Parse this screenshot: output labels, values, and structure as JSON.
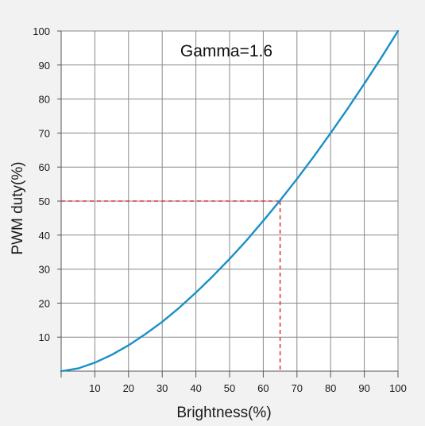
{
  "chart_data": {
    "type": "line",
    "title": "",
    "annotation": "Gamma=1.6",
    "xlabel": "Brightness(%)",
    "ylabel": "PWM duty(%)",
    "xlim": [
      0,
      100
    ],
    "ylim": [
      0,
      100
    ],
    "x_ticks": [
      "10",
      "20",
      "30",
      "40",
      "50",
      "60",
      "70",
      "80",
      "90",
      "100"
    ],
    "y_ticks": [
      "10",
      "20",
      "30",
      "40",
      "50",
      "60",
      "70",
      "80",
      "90",
      "100"
    ],
    "grid": true,
    "gamma": 1.6,
    "series": [
      {
        "x": [
          0,
          5,
          10,
          15,
          20,
          25,
          30,
          35,
          40,
          45,
          50,
          55,
          60,
          65,
          70,
          75,
          80,
          85,
          90,
          95,
          100
        ],
        "y": [
          0,
          0.8,
          2.5,
          4.8,
          7.6,
          10.9,
          14.5,
          18.6,
          23.1,
          27.9,
          33.0,
          38.4,
          44.2,
          50.2,
          56.5,
          63.1,
          70.0,
          77.1,
          84.5,
          92.1,
          100
        ],
        "color": "#1a8fc8"
      }
    ],
    "reference_point": {
      "x": 65,
      "y": 50,
      "color": "#e0303a"
    }
  }
}
